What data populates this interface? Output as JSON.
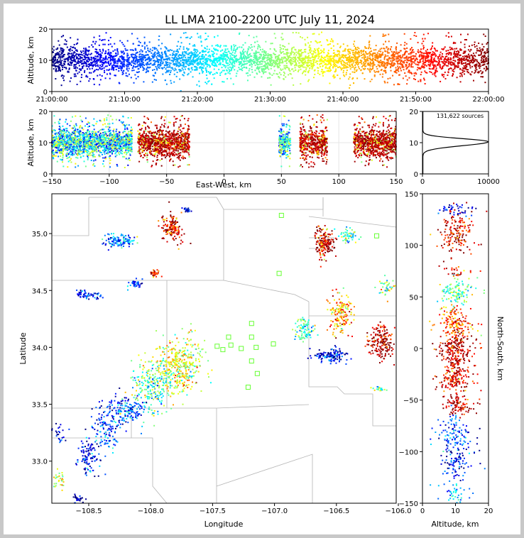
{
  "title": "LL LMA 2100-2200 UTC July 11, 2024",
  "colors": {
    "county_lines": "#b4b4b4",
    "station_marker": "#66ff33",
    "colormap": "jet"
  },
  "chart_data": [
    {
      "id": "time-altitude",
      "type": "scatter",
      "ylabel": "Altitude, km",
      "xlim": [
        "21:00:00",
        "22:00:00"
      ],
      "ylim": [
        0,
        20
      ],
      "x_ticks": [
        "21:00:00",
        "21:10:00",
        "21:20:00",
        "21:30:00",
        "21:40:00",
        "21:50:00",
        "22:00:00"
      ],
      "y_ticks": [
        "0",
        "10",
        "20"
      ],
      "color_by": "time",
      "altitude_profile": {
        "core_km": [
          5,
          16
        ],
        "peak_km": 10
      }
    },
    {
      "id": "east-west-altitude",
      "type": "scatter",
      "xlabel": "East-West, km",
      "ylabel": "Altitude, km",
      "xlim": [
        -150,
        150
      ],
      "ylim": [
        0,
        20
      ],
      "x_ticks": [
        "−150",
        "−100",
        "−50",
        "0",
        "50",
        "100",
        "150"
      ],
      "y_ticks": [
        "0",
        "10",
        "20"
      ],
      "clusters_km": [
        {
          "x": [
            -150,
            -100
          ],
          "late": false
        },
        {
          "x": [
            -100,
            -80
          ],
          "late": false
        },
        {
          "x": [
            -75,
            -30
          ],
          "late": true
        },
        {
          "x": [
            48,
            58
          ],
          "late": false
        },
        {
          "x": [
            66,
            90
          ],
          "late": true
        },
        {
          "x": [
            113,
            150
          ],
          "late": true
        }
      ]
    },
    {
      "id": "altitude-histogram",
      "type": "line",
      "annotation": "131,622 sources",
      "xlim": [
        0,
        10000
      ],
      "ylim": [
        0,
        20
      ],
      "x_ticks": [
        "0",
        "10000"
      ],
      "y_ticks": [
        "0",
        "10",
        "20"
      ],
      "peak": {
        "altitude_km": 10.3,
        "count": 9900
      }
    },
    {
      "id": "plan-view",
      "type": "scatter",
      "xlabel": "Longitude",
      "ylabel": "Latitude",
      "xlim": [
        -108.83,
        -105.83
      ],
      "ylim": [
        32.63,
        35.35
      ],
      "x_ticks": [
        "−108.5",
        "−108.0",
        "−107.5",
        "−107.0",
        "−106.5",
        "−106.0"
      ],
      "y_ticks": [
        "33.0",
        "33.5",
        "34.0",
        "34.5",
        "35.0"
      ],
      "stations": [
        [
          -106.83,
          35.16
        ],
        [
          -106.0,
          34.98
        ],
        [
          -106.85,
          34.65
        ],
        [
          -107.09,
          34.21
        ],
        [
          -107.29,
          34.09
        ],
        [
          -107.09,
          34.09
        ],
        [
          -107.39,
          34.01
        ],
        [
          -107.27,
          34.02
        ],
        [
          -107.34,
          33.98
        ],
        [
          -107.18,
          33.99
        ],
        [
          -107.05,
          34.0
        ],
        [
          -106.9,
          34.03
        ],
        [
          -107.09,
          33.88
        ],
        [
          -107.04,
          33.77
        ],
        [
          -107.12,
          33.65
        ]
      ]
    },
    {
      "id": "altitude-north-south",
      "type": "scatter",
      "xlabel": "Altitude, km",
      "ylabel": "North-South, km",
      "xlim": [
        0,
        20
      ],
      "ylim": [
        -150,
        150
      ],
      "x_ticks": [
        "0",
        "10",
        "20"
      ],
      "y_ticks": [
        "−150",
        "−100",
        "−50",
        "0",
        "50",
        "100",
        "150"
      ]
    }
  ]
}
